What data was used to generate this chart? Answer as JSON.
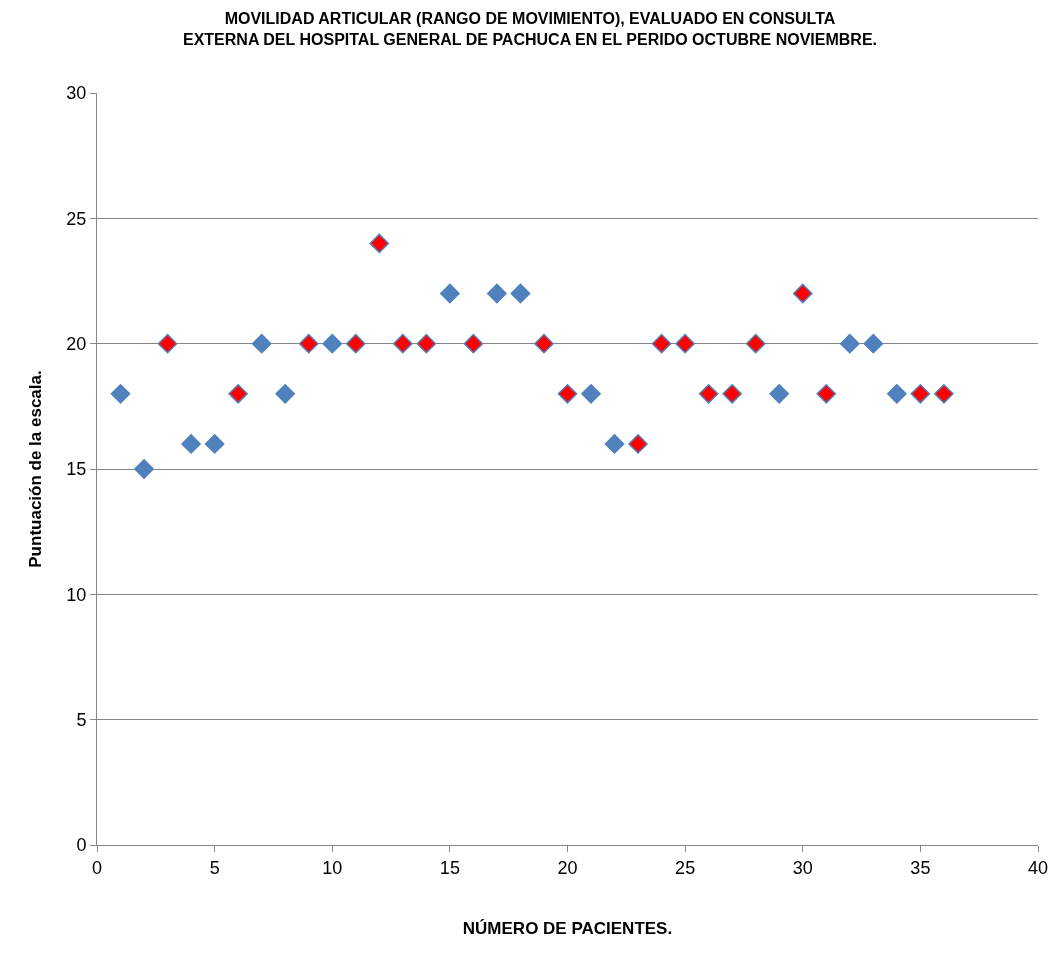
{
  "chart_data": {
    "type": "scatter",
    "title": "MOVILIDAD ARTICULAR (RANGO DE MOVIMIENTO), EVALUADO EN CONSULTA\nEXTERNA DEL HOSPITAL GENERAL DE PACHUCA EN EL PERIDO OCTUBRE NOVIEMBRE.",
    "xlabel": "NÚMERO DE PACIENTES.",
    "ylabel": "Puntuación de la escala.",
    "series": [
      {
        "color": "#4f81bd",
        "x": [
          1,
          2,
          4,
          5,
          7,
          8,
          10,
          15,
          17,
          18,
          21,
          22,
          29,
          32,
          33,
          34
        ],
        "values": [
          18,
          15,
          16,
          16,
          20,
          18,
          20,
          22,
          22,
          22,
          18,
          16,
          18,
          20,
          20,
          18
        ]
      },
      {
        "color": "#ff0000",
        "x": [
          3,
          6,
          9,
          11,
          12,
          13,
          14,
          16,
          19,
          20,
          23,
          24,
          25,
          26,
          27,
          28,
          30,
          31,
          35,
          36
        ],
        "values": [
          20,
          18,
          20,
          20,
          24,
          20,
          20,
          20,
          20,
          18,
          16,
          20,
          20,
          18,
          18,
          20,
          22,
          18,
          18,
          18
        ]
      }
    ],
    "xlim": [
      0,
      40
    ],
    "xticks": [
      0,
      5,
      10,
      15,
      20,
      25,
      30,
      35,
      40
    ],
    "ylim": [
      0,
      30
    ],
    "yticks": [
      0,
      5,
      10,
      15,
      20,
      25,
      30
    ],
    "grid": "y",
    "marker": "diamond"
  }
}
